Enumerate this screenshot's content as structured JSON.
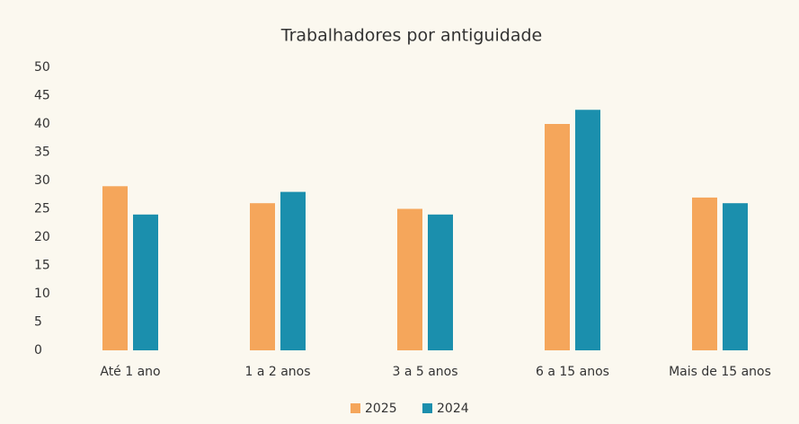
{
  "chart_data": {
    "type": "bar",
    "title": "Trabalhadores por antiguidade",
    "categories": [
      "Até 1 ano",
      "1 a 2 anos",
      "3 a 5 anos",
      "6 a 15 anos",
      "Mais de 15 anos"
    ],
    "series": [
      {
        "name": "2025",
        "color": "#f5a65b",
        "values": [
          29,
          26,
          25,
          40,
          27
        ]
      },
      {
        "name": "2024",
        "color": "#1b8fad",
        "values": [
          24,
          28,
          24,
          42.5,
          26
        ]
      }
    ],
    "ylim": [
      0,
      50
    ],
    "yticks": [
      0,
      5,
      10,
      15,
      20,
      25,
      30,
      35,
      40,
      45,
      50
    ],
    "grid": false,
    "legend": "bottom"
  }
}
